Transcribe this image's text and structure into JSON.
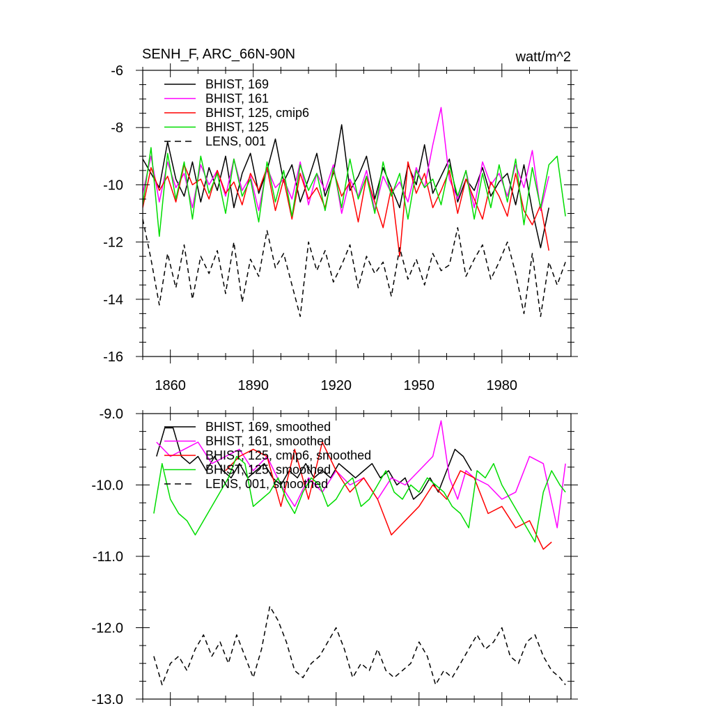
{
  "chart_data": [
    {
      "type": "line",
      "title": "SENH_F, ARC_66N-90N",
      "units": "watt/m^2",
      "xlim": [
        1850,
        2005
      ],
      "ylim": [
        -16,
        -6
      ],
      "xticks": [
        1860,
        1890,
        1920,
        1950,
        1980
      ],
      "xtick_labels": [
        "1860",
        "1890",
        "1920",
        "1950",
        "1980"
      ],
      "yticks": [
        -16,
        -14,
        -12,
        -10,
        -8,
        -6
      ],
      "ytick_labels": [
        "-16",
        "-14",
        "-12",
        "-10",
        "-8",
        "-6"
      ],
      "legend_position": "top-left",
      "series": [
        {
          "name": "BHIST, 169",
          "color": "#000000",
          "dash": "solid",
          "x": [
            1850,
            1853,
            1856,
            1859,
            1862,
            1865,
            1868,
            1871,
            1874,
            1877,
            1880,
            1883,
            1886,
            1889,
            1892,
            1895,
            1898,
            1901,
            1904,
            1907,
            1910,
            1913,
            1916,
            1919,
            1922,
            1925,
            1928,
            1931,
            1934,
            1937,
            1940,
            1943,
            1946,
            1949,
            1952,
            1955,
            1958,
            1961,
            1964,
            1967,
            1970,
            1973,
            1976,
            1979,
            1982,
            1985,
            1988,
            1991,
            1994,
            1997
          ],
          "y": [
            -9.1,
            -9.6,
            -10.1,
            -8.5,
            -9.8,
            -10.4,
            -9.2,
            -10.6,
            -9.4,
            -10.2,
            -9.0,
            -10.8,
            -9.6,
            -8.9,
            -10.3,
            -9.5,
            -8.4,
            -9.9,
            -9.3,
            -10.6,
            -9.8,
            -8.9,
            -10.4,
            -9.6,
            -7.9,
            -10.2,
            -9.7,
            -9.0,
            -10.5,
            -9.4,
            -10.1,
            -10.8,
            -9.3,
            -10.0,
            -8.6,
            -10.3,
            -9.7,
            -9.1,
            -10.6,
            -9.8,
            -10.2,
            -9.4,
            -10.4,
            -9.9,
            -9.6,
            -10.7,
            -9.3,
            -10.9,
            -12.2,
            -10.8
          ]
        },
        {
          "name": "BHIST, 161",
          "color": "#ff00ff",
          "dash": "solid",
          "x": [
            1850,
            1853,
            1856,
            1859,
            1862,
            1865,
            1868,
            1871,
            1874,
            1877,
            1880,
            1883,
            1886,
            1889,
            1892,
            1895,
            1898,
            1901,
            1904,
            1907,
            1910,
            1913,
            1916,
            1919,
            1922,
            1925,
            1928,
            1931,
            1934,
            1937,
            1940,
            1943,
            1946,
            1949,
            1952,
            1955,
            1958,
            1961,
            1964,
            1967,
            1970,
            1973,
            1976,
            1979,
            1982,
            1985,
            1988,
            1991,
            1994,
            1997
          ],
          "y": [
            -10.3,
            -9.0,
            -10.6,
            -9.2,
            -10.1,
            -9.6,
            -10.8,
            -9.3,
            -10.0,
            -9.5,
            -10.4,
            -9.1,
            -10.2,
            -9.7,
            -10.9,
            -9.4,
            -10.1,
            -9.8,
            -10.5,
            -9.2,
            -10.7,
            -9.6,
            -10.2,
            -9.3,
            -11.0,
            -9.8,
            -10.4,
            -9.5,
            -10.9,
            -9.7,
            -10.3,
            -9.9,
            -10.6,
            -9.4,
            -10.1,
            -8.6,
            -7.3,
            -9.8,
            -10.5,
            -9.5,
            -10.8,
            -9.2,
            -10.0,
            -9.6,
            -10.4,
            -9.3,
            -10.1,
            -8.8,
            -10.9,
            -9.7
          ]
        },
        {
          "name": "BHIST, 125, cmip6",
          "color": "#ff0000",
          "dash": "solid",
          "x": [
            1850,
            1853,
            1856,
            1859,
            1862,
            1865,
            1868,
            1871,
            1874,
            1877,
            1880,
            1883,
            1886,
            1889,
            1892,
            1895,
            1898,
            1901,
            1904,
            1907,
            1910,
            1913,
            1916,
            1919,
            1922,
            1925,
            1928,
            1931,
            1934,
            1937,
            1940,
            1943,
            1946,
            1949,
            1952,
            1955,
            1958,
            1961,
            1964,
            1967,
            1970,
            1973,
            1976,
            1979,
            1982,
            1985,
            1988,
            1991,
            1994,
            1997
          ],
          "y": [
            -10.8,
            -9.4,
            -10.2,
            -9.7,
            -10.6,
            -9.3,
            -10.0,
            -9.8,
            -10.5,
            -9.5,
            -10.3,
            -9.9,
            -10.7,
            -9.6,
            -10.2,
            -9.4,
            -10.9,
            -9.8,
            -11.2,
            -9.6,
            -10.5,
            -10.1,
            -10.8,
            -9.5,
            -10.4,
            -9.9,
            -11.3,
            -9.7,
            -10.6,
            -11.5,
            -10.1,
            -12.5,
            -9.2,
            -10.3,
            -9.6,
            -10.8,
            -10.2,
            -9.5,
            -11.0,
            -9.8,
            -10.5,
            -11.2,
            -9.9,
            -10.4,
            -11.1,
            -9.6,
            -10.9,
            -11.4,
            -10.7,
            -12.3
          ]
        },
        {
          "name": "BHIST, 125",
          "color": "#00dd00",
          "dash": "solid",
          "x": [
            1850,
            1853,
            1856,
            1859,
            1862,
            1865,
            1868,
            1871,
            1874,
            1877,
            1880,
            1883,
            1886,
            1889,
            1892,
            1895,
            1898,
            1901,
            1904,
            1907,
            1910,
            1913,
            1916,
            1919,
            1922,
            1925,
            1928,
            1931,
            1934,
            1937,
            1940,
            1943,
            1946,
            1949,
            1952,
            1955,
            1958,
            1961,
            1964,
            1967,
            1970,
            1973,
            1976,
            1979,
            1982,
            1985,
            1988,
            1991,
            1994,
            1997,
            2000,
            2003
          ],
          "y": [
            -10.7,
            -8.7,
            -11.8,
            -8.9,
            -10.5,
            -9.2,
            -11.2,
            -9.0,
            -10.3,
            -9.6,
            -11.0,
            -9.1,
            -10.4,
            -9.8,
            -11.3,
            -9.2,
            -10.6,
            -9.5,
            -11.1,
            -9.3,
            -10.2,
            -9.6,
            -10.9,
            -9.4,
            -10.8,
            -9.1,
            -10.5,
            -9.7,
            -11.0,
            -9.2,
            -10.4,
            -9.6,
            -11.2,
            -9.5,
            -10.1,
            -9.8,
            -10.7,
            -9.3,
            -10.4,
            -9.5,
            -11.2,
            -9.6,
            -10.8,
            -9.3,
            -10.6,
            -9.1,
            -11.4,
            -9.4,
            -10.8,
            -9.3,
            -9.0,
            -11.1
          ]
        },
        {
          "name": "LENS, 001",
          "color": "#000000",
          "dash": "dashed",
          "x": [
            1850,
            1853,
            1856,
            1859,
            1862,
            1865,
            1868,
            1871,
            1874,
            1877,
            1880,
            1883,
            1886,
            1889,
            1892,
            1895,
            1898,
            1901,
            1904,
            1907,
            1910,
            1913,
            1916,
            1919,
            1922,
            1925,
            1928,
            1931,
            1934,
            1937,
            1940,
            1943,
            1946,
            1949,
            1952,
            1955,
            1958,
            1961,
            1964,
            1967,
            1970,
            1973,
            1976,
            1979,
            1982,
            1985,
            1988,
            1991,
            1994,
            1997,
            2000,
            2003
          ],
          "y": [
            -11.2,
            -12.6,
            -14.2,
            -12.4,
            -13.6,
            -12.1,
            -14.0,
            -12.5,
            -13.1,
            -12.3,
            -13.8,
            -12.0,
            -14.1,
            -12.6,
            -13.2,
            -11.6,
            -12.9,
            -12.4,
            -13.5,
            -14.6,
            -12.0,
            -13.0,
            -12.3,
            -13.4,
            -12.8,
            -12.1,
            -13.6,
            -12.5,
            -13.1,
            -12.7,
            -13.9,
            -12.2,
            -13.3,
            -12.6,
            -13.5,
            -12.4,
            -13.0,
            -12.8,
            -11.5,
            -13.2,
            -12.6,
            -12.1,
            -13.3,
            -12.7,
            -12.0,
            -13.1,
            -14.5,
            -12.4,
            -14.6,
            -12.7,
            -13.5,
            -12.7
          ]
        }
      ]
    },
    {
      "type": "line",
      "xlim": [
        1850,
        2005
      ],
      "ylim": [
        -13.0,
        -9.0
      ],
      "xticks": [
        1860,
        1890,
        1920,
        1950,
        1980
      ],
      "yticks": [
        -13.0,
        -12.0,
        -11.0,
        -10.0,
        -9.0
      ],
      "ytick_labels": [
        "-13.0",
        "-12.0",
        "-11.0",
        "-10.0",
        "-9.0"
      ],
      "legend_position": "top-left",
      "series": [
        {
          "name": "BHIST, 169, smoothed",
          "color": "#000000",
          "dash": "solid",
          "x": [
            1855,
            1858,
            1861,
            1864,
            1867,
            1870,
            1873,
            1876,
            1879,
            1882,
            1885,
            1888,
            1891,
            1894,
            1897,
            1900,
            1903,
            1906,
            1909,
            1912,
            1915,
            1918,
            1921,
            1924,
            1927,
            1930,
            1933,
            1936,
            1939,
            1942,
            1945,
            1948,
            1951,
            1954,
            1957,
            1960,
            1963,
            1966,
            1969
          ],
          "y": [
            -9.6,
            -9.2,
            -9.2,
            -9.6,
            -9.7,
            -9.6,
            -9.8,
            -9.6,
            -9.8,
            -9.9,
            -9.7,
            -9.9,
            -9.8,
            -9.7,
            -9.9,
            -10.0,
            -9.8,
            -9.9,
            -9.7,
            -9.9,
            -9.8,
            -9.9,
            -9.7,
            -9.8,
            -9.9,
            -9.8,
            -9.7,
            -9.9,
            -9.8,
            -10.0,
            -9.9,
            -10.2,
            -10.1,
            -9.9,
            -10.1,
            -9.8,
            -9.5,
            -9.6,
            -9.8
          ]
        },
        {
          "name": "BHIST, 161, smoothed",
          "color": "#ff00ff",
          "dash": "solid",
          "x": [
            1855,
            1860,
            1865,
            1870,
            1875,
            1880,
            1885,
            1890,
            1895,
            1900,
            1905,
            1910,
            1915,
            1920,
            1925,
            1930,
            1935,
            1940,
            1945,
            1950,
            1955,
            1958,
            1961,
            1964,
            1967,
            1970,
            1975,
            1980,
            1985,
            1990,
            1995,
            2000,
            2003
          ],
          "y": [
            -9.4,
            -9.6,
            -9.5,
            -9.4,
            -9.7,
            -9.6,
            -9.5,
            -9.8,
            -9.6,
            -10.0,
            -10.3,
            -9.9,
            -10.1,
            -9.8,
            -10.0,
            -9.9,
            -10.2,
            -9.9,
            -10.0,
            -9.8,
            -9.6,
            -9.1,
            -9.9,
            -10.2,
            -9.8,
            -9.9,
            -10.0,
            -10.2,
            -10.1,
            -9.6,
            -9.7,
            -10.6,
            -9.7
          ]
        },
        {
          "name": "BHIST, 125, cmip6, smoothed",
          "color": "#ff0000",
          "dash": "solid",
          "x": [
            1880,
            1885,
            1890,
            1895,
            1900,
            1905,
            1910,
            1915,
            1920,
            1925,
            1930,
            1935,
            1940,
            1945,
            1950,
            1955,
            1960,
            1965,
            1970,
            1975,
            1980,
            1985,
            1990,
            1995,
            1998
          ],
          "y": [
            -9.8,
            -9.6,
            -9.5,
            -9.6,
            -10.3,
            -9.5,
            -10.2,
            -9.4,
            -9.8,
            -10.1,
            -9.9,
            -10.2,
            -10.7,
            -10.5,
            -10.3,
            -10.0,
            -10.2,
            -9.8,
            -9.9,
            -10.4,
            -10.3,
            -10.6,
            -10.5,
            -10.9,
            -10.8
          ]
        },
        {
          "name": "BHIST, 125, smoothed",
          "color": "#00dd00",
          "dash": "solid",
          "x": [
            1854,
            1857,
            1860,
            1863,
            1866,
            1869,
            1872,
            1875,
            1878,
            1881,
            1884,
            1887,
            1890,
            1893,
            1896,
            1899,
            1902,
            1905,
            1908,
            1911,
            1914,
            1917,
            1920,
            1923,
            1926,
            1929,
            1932,
            1935,
            1938,
            1941,
            1944,
            1947,
            1950,
            1953,
            1956,
            1959,
            1962,
            1965,
            1968,
            1971,
            1974,
            1977,
            1980,
            1983,
            1986,
            1989,
            1992,
            1995,
            1998,
            2001,
            2003
          ],
          "y": [
            -10.4,
            -9.7,
            -10.2,
            -10.4,
            -10.5,
            -10.7,
            -10.5,
            -10.3,
            -10.1,
            -9.9,
            -9.6,
            -9.7,
            -10.3,
            -10.2,
            -10.1,
            -9.9,
            -10.2,
            -10.4,
            -10.1,
            -9.9,
            -10.0,
            -10.3,
            -10.2,
            -10.0,
            -9.9,
            -10.3,
            -10.2,
            -10.0,
            -9.8,
            -10.1,
            -10.2,
            -10.0,
            -10.1,
            -9.9,
            -10.0,
            -10.1,
            -10.3,
            -10.4,
            -10.6,
            -9.8,
            -9.9,
            -9.7,
            -10.0,
            -10.2,
            -10.4,
            -10.6,
            -10.8,
            -10.1,
            -9.8,
            -10.0,
            -10.1
          ]
        },
        {
          "name": "LENS, 001, smoothed",
          "color": "#000000",
          "dash": "dashed",
          "x": [
            1854,
            1857,
            1860,
            1863,
            1866,
            1869,
            1872,
            1875,
            1878,
            1881,
            1884,
            1887,
            1890,
            1893,
            1896,
            1899,
            1902,
            1905,
            1908,
            1911,
            1914,
            1917,
            1920,
            1923,
            1926,
            1929,
            1932,
            1935,
            1938,
            1941,
            1944,
            1947,
            1950,
            1953,
            1956,
            1959,
            1962,
            1965,
            1968,
            1971,
            1974,
            1977,
            1980,
            1983,
            1986,
            1989,
            1992,
            1995,
            1998,
            2001,
            2003
          ],
          "y": [
            -12.4,
            -12.8,
            -12.5,
            -12.4,
            -12.6,
            -12.3,
            -12.1,
            -12.4,
            -12.2,
            -12.5,
            -12.1,
            -12.4,
            -12.7,
            -12.3,
            -11.7,
            -11.9,
            -12.2,
            -12.6,
            -12.7,
            -12.5,
            -12.4,
            -12.2,
            -12.0,
            -12.3,
            -12.7,
            -12.5,
            -12.6,
            -12.3,
            -12.6,
            -12.7,
            -12.6,
            -12.5,
            -12.2,
            -12.4,
            -12.8,
            -12.6,
            -12.7,
            -12.5,
            -12.3,
            -12.1,
            -12.3,
            -12.2,
            -12.0,
            -12.4,
            -12.5,
            -12.2,
            -12.1,
            -12.4,
            -12.6,
            -12.7,
            -12.8
          ]
        }
      ]
    }
  ]
}
